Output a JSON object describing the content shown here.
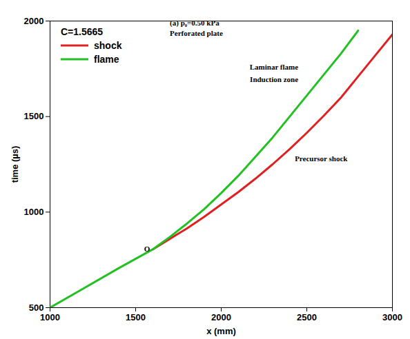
{
  "chart_data": {
    "type": "line",
    "x_label": "x (mm)",
    "y_label": "time (µs)",
    "legend_title": "C=1.5665",
    "legend": "top-left",
    "grid": false,
    "xlim": [
      1000,
      3000
    ],
    "xticks": [
      1000,
      1500,
      2000,
      2500,
      3000
    ],
    "ylim": [
      500,
      2000
    ],
    "yticks": [
      500,
      1000,
      1500,
      2000
    ],
    "series": [
      {
        "name": "shock",
        "color": "#e02020",
        "x": [
          1600,
          1700,
          1800,
          1900,
          2000,
          2100,
          2200,
          2300,
          2400,
          2500,
          2600,
          2700,
          2800,
          2900,
          3000
        ],
        "values": [
          805,
          860,
          915,
          975,
          1040,
          1105,
          1175,
          1250,
          1330,
          1415,
          1505,
          1600,
          1710,
          1820,
          1930
        ]
      },
      {
        "name": "flame",
        "color": "#22c022",
        "x": [
          1000,
          1200,
          1400,
          1600,
          1700,
          1800,
          1900,
          2000,
          2100,
          2200,
          2300,
          2400,
          2500,
          2600,
          2700,
          2800
        ],
        "values": [
          500,
          603,
          706,
          805,
          870,
          940,
          1015,
          1100,
          1190,
          1290,
          1390,
          1500,
          1610,
          1720,
          1830,
          1950
        ]
      }
    ],
    "annotations": [
      {
        "text": "(a) p₀=0.50 kPa",
        "x": 1700,
        "y": 1990
      },
      {
        "text": "Perforated plate",
        "x": 1700,
        "y": 1935
      },
      {
        "text": "Laminar flame",
        "x": 2450,
        "y": 1760
      },
      {
        "text": "Induction zone",
        "x": 2450,
        "y": 1695
      },
      {
        "text": "Precursor shock",
        "x": 2430,
        "y": 1280
      },
      {
        "text": "O",
        "x": 1600,
        "y": 805
      }
    ]
  }
}
